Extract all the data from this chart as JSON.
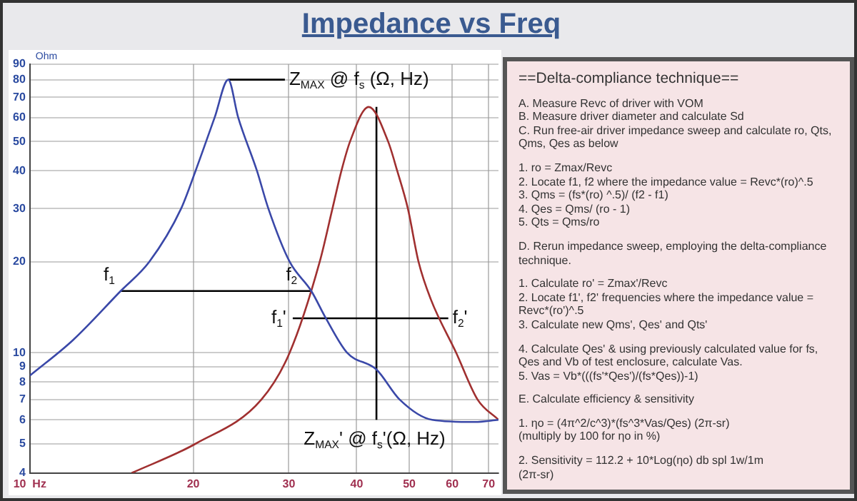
{
  "chart_data": [
    {
      "type": "line",
      "title": "Impedance vs Freq",
      "ylabel": "Ohm",
      "log": "xy",
      "xlim": [
        10,
        73
      ],
      "ylim": [
        4,
        90
      ],
      "xticks": [
        {
          "value": 10,
          "label": "10  Hz"
        },
        20,
        30,
        40,
        50,
        60,
        70
      ],
      "yticks": [
        4,
        5,
        6,
        7,
        8,
        9,
        10,
        20,
        30,
        40,
        50,
        60,
        70,
        80,
        90
      ],
      "grid": true,
      "legend": false,
      "marker": "none",
      "line_style": "solid",
      "series": [
        {
          "color": "#3a48a8",
          "x": [
            10,
            12,
            14.7,
            16.6,
            19,
            20.2,
            21.9,
            23.2,
            24.2,
            26.2,
            27.5,
            30.1,
            33,
            35.1,
            38.4,
            43.5,
            48,
            55.1,
            66,
            73
          ],
          "values": [
            8.4,
            11,
            16,
            20,
            30,
            40,
            60,
            80,
            60,
            40,
            30,
            20,
            16,
            13,
            10,
            8.8,
            7,
            6,
            5.9,
            6
          ]
        },
        {
          "color": "#a03030",
          "x": [
            15.4,
            20.2,
            26.7,
            30.1,
            34.2,
            36.1,
            37.5,
            38.9,
            42.1,
            45.7,
            47.5,
            49.7,
            52,
            54.8,
            61,
            66.8,
            73
          ],
          "values": [
            4,
            5,
            7,
            10,
            20,
            30,
            40,
            50,
            65,
            50,
            40,
            30,
            20,
            15,
            10,
            7,
            6
          ]
        },
        {
          "color": "#000000",
          "x": [
            23.2,
            29.5
          ],
          "values": [
            80,
            80
          ]
        },
        {
          "color": "#000000",
          "x": [
            43.5,
            43.5
          ],
          "values": [
            65,
            6
          ]
        },
        {
          "color": "#000000",
          "x": [
            14.7,
            33
          ],
          "values": [
            16,
            16
          ]
        },
        {
          "color": "#000000",
          "x": [
            30.5,
            59
          ],
          "values": [
            13,
            13
          ]
        }
      ],
      "annotations": [
        {
          "text": "Z$_{MAX}$ @ f$_{s}$ (Ω, Hz)",
          "x": 29.5,
          "y": 80
        },
        {
          "text": "f$_{1}$",
          "x": 14.7,
          "y": 16
        },
        {
          "text": "f$_{2}$",
          "x": 33,
          "y": 16
        },
        {
          "text": "f$_{1}$'",
          "x": 30.5,
          "y": 13
        },
        {
          "text": "f$_{2}$'",
          "x": 59,
          "y": 13
        },
        {
          "text": "Z$_{MAX}$' @ f$_{s}$'(Ω, Hz)",
          "x": 43.5,
          "y": 6
        }
      ]
    },
    {
      "type": "other",
      "title": "==Delta-compliance technique==",
      "annotations": [
        "A. Measure Revc of driver with VOM\nB. Measure driver diameter and calculate Sd\nC. Run free-air driver impedance sweep and calculate ro, Qts, Qms, Qes as below",
        "1. ro = Zmax/Revc\n2. Locate f1, f2 where the impedance value = Revc*(ro)^.5\n3. Qms = (fs*(ro) ^.5)/ (f2 - f1)\n4. Qes = Qms/ (ro - 1)\n5. Qts = Qms/ro",
        "D. Rerun impedance sweep, employing the delta-compliance technique.",
        "1. Calculate ro' = Zmax'/Revc\n2. Locate f1', f2' frequencies where the impedance value = Revc*(ro')^.5\n3. Calculate new Qms', Qes' and Qts'",
        "4. Calculate Qes' & using previously calculated value for fs, Qes and Vb of test enclosure, calculate Vas.\n5. Vas = Vb*(((fs'*Qes')/(fs*Qes))-1)",
        "E. Calculate efficiency & sensitivity",
        "1. ηo = (4π^2/c^3)*(fs^3*Vas/Qes)  (2π-sr)\n(multiply by 100 for ηo in %)",
        "2. Sensitivity = 112.2 + 10*Log(ηo) db spl 1w/1m\n(2π-sr)"
      ]
    }
  ]
}
